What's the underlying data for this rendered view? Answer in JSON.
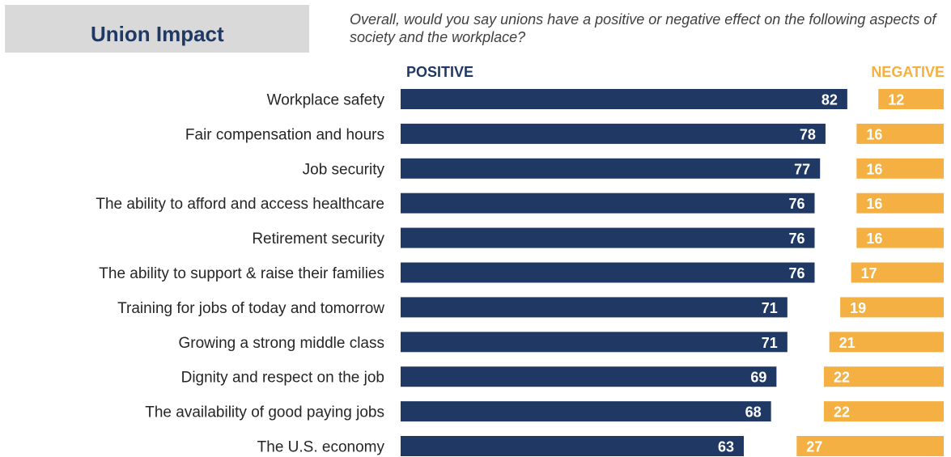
{
  "header": {
    "title": "Union Impact",
    "question": "Overall, would you say unions have a positive or negative effect on the following aspects of society and the workplace?"
  },
  "colors": {
    "positive": "#1f3864",
    "negative": "#f4b042",
    "title_box": "#d9d9d9"
  },
  "chart_data": {
    "type": "bar",
    "orientation": "horizontal",
    "categories": [
      "Workplace safety",
      "Fair compensation and hours",
      "Job security",
      "The ability to afford and access healthcare",
      "Retirement security",
      "The ability to support & raise their families",
      "Training for jobs of today and tomorrow",
      "Growing a strong middle class",
      "Dignity and respect on the job",
      "The availability of good paying jobs",
      "The U.S. economy"
    ],
    "series": [
      {
        "name": "POSITIVE",
        "values": [
          82,
          78,
          77,
          76,
          76,
          76,
          71,
          71,
          69,
          68,
          63
        ]
      },
      {
        "name": "NEGATIVE",
        "values": [
          12,
          16,
          16,
          16,
          16,
          17,
          19,
          21,
          22,
          22,
          27
        ]
      }
    ],
    "legend": "top",
    "grid": false
  }
}
